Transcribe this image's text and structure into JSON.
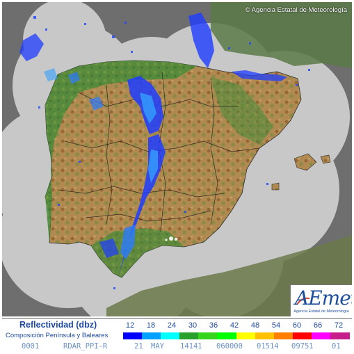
{
  "map": {
    "copyright": "© Agencia Estatal de Meteorología",
    "logo": {
      "mark": "AEmet",
      "subtitle": "Agencia Estatal de Meteorología"
    },
    "colors": {
      "sea": "#4f4f4f",
      "outside_coverage": "#6e6e6e",
      "radar_coverage": "#c8c8c8",
      "land_low": "#3f7a35",
      "land_mid": "#b58e52",
      "land_high": "#8a4f22",
      "snow": "#ffffff",
      "echo": "#1e46ff"
    }
  },
  "legend": {
    "title": "Reflectividad (dbz)",
    "subtitle": "Composición Península y Baleares",
    "values": [
      "12",
      "18",
      "24",
      "30",
      "36",
      "42",
      "48",
      "54",
      "60",
      "66",
      "72"
    ],
    "colors": [
      "#0000ff",
      "#00a0ff",
      "#00ffff",
      "#27a02c",
      "#35d41d",
      "#00ff00",
      "#ffff00",
      "#ffc000",
      "#ff7f00",
      "#ff0000",
      "#ff00ff",
      "#c81e8c"
    ]
  },
  "status": {
    "fields": [
      "0001",
      "RDAR_PPI-R",
      "21",
      "MAY",
      "14141",
      "060000",
      "01514",
      "09751",
      "01"
    ]
  }
}
